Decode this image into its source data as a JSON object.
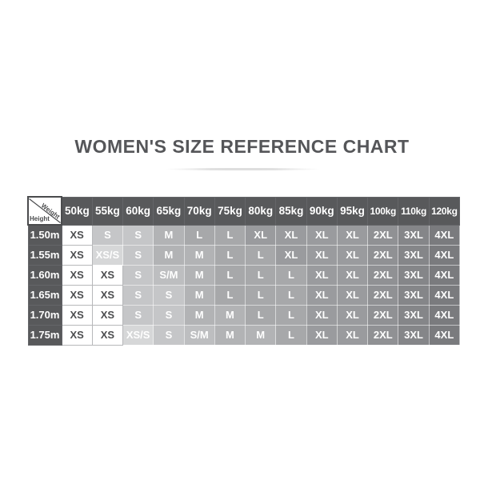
{
  "page": {
    "title": "WOMEN'S SIZE REFERENCE CHART"
  },
  "chart_data": {
    "type": "table",
    "title": "WOMEN'S SIZE REFERENCE CHART",
    "corner": {
      "top_label": "Weight",
      "side_label": "Height"
    },
    "weight_columns": [
      "50kg",
      "55kg",
      "60kg",
      "65kg",
      "70kg",
      "75kg",
      "80kg",
      "85kg",
      "90kg",
      "95kg",
      "100kg",
      "110kg",
      "120kg"
    ],
    "rows": [
      {
        "height": "1.50m",
        "sizes": [
          "XS",
          "S",
          "S",
          "M",
          "L",
          "L",
          "XL",
          "XL",
          "XL",
          "XL",
          "2XL",
          "3XL",
          "4XL"
        ]
      },
      {
        "height": "1.55m",
        "sizes": [
          "XS",
          "XS/S",
          "S",
          "M",
          "M",
          "L",
          "L",
          "XL",
          "XL",
          "XL",
          "2XL",
          "3XL",
          "4XL"
        ]
      },
      {
        "height": "1.60m",
        "sizes": [
          "XS",
          "XS",
          "S",
          "S/M",
          "M",
          "L",
          "L",
          "L",
          "XL",
          "XL",
          "2XL",
          "3XL",
          "4XL"
        ]
      },
      {
        "height": "1.65m",
        "sizes": [
          "XS",
          "XS",
          "S",
          "S",
          "M",
          "L",
          "L",
          "L",
          "XL",
          "XL",
          "2XL",
          "3XL",
          "4XL"
        ]
      },
      {
        "height": "1.70m",
        "sizes": [
          "XS",
          "XS",
          "S",
          "S",
          "M",
          "M",
          "L",
          "L",
          "XL",
          "XL",
          "2XL",
          "3XL",
          "4XL"
        ]
      },
      {
        "height": "1.75m",
        "sizes": [
          "XS",
          "XS",
          "XS/S",
          "S",
          "S/M",
          "M",
          "M",
          "L",
          "XL",
          "XL",
          "2XL",
          "3XL",
          "4XL"
        ]
      }
    ],
    "size_colors": {
      "XS": {
        "bg": "#ffffff",
        "fg": "#4c4d4f"
      },
      "XS/S": {
        "bg": "#d6d7d8",
        "fg": "#ffffff"
      },
      "S": {
        "bg": "#c5c6c8",
        "fg": "#ffffff"
      },
      "S/M": {
        "bg": "#bdbec0",
        "fg": "#ffffff"
      },
      "M": {
        "bg": "#b2b3b5",
        "fg": "#ffffff"
      },
      "L": {
        "bg": "#a7a8aa",
        "fg": "#ffffff"
      },
      "XL": {
        "bg": "#9a9b9e",
        "fg": "#ffffff"
      },
      "2XL": {
        "bg": "#909194",
        "fg": "#ffffff"
      },
      "3XL": {
        "bg": "#858689",
        "fg": "#ffffff"
      },
      "4XL": {
        "bg": "#7a7b7e",
        "fg": "#ffffff"
      }
    },
    "header_bg": "#58595b",
    "header_fg": "#ffffff"
  }
}
